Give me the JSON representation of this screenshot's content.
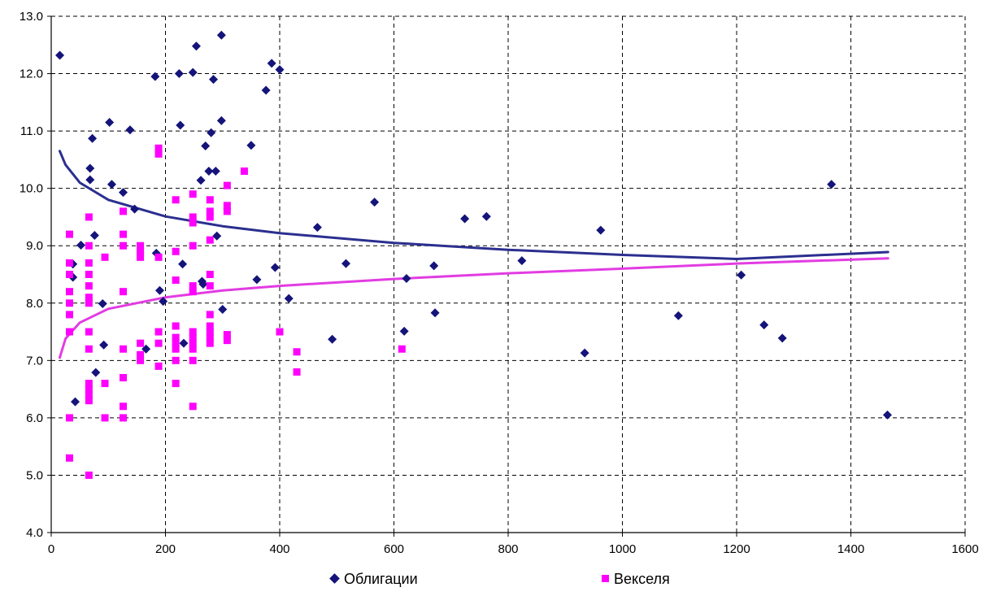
{
  "chart_data": {
    "type": "scatter",
    "title": "",
    "xlabel": "",
    "ylabel": "",
    "xlim": [
      0,
      1600
    ],
    "ylim": [
      4.0,
      13.0
    ],
    "x_ticks": [
      0,
      200,
      400,
      600,
      800,
      1000,
      1200,
      1400,
      1600
    ],
    "y_ticks": [
      "4.0",
      "5.0",
      "6.0",
      "7.0",
      "8.0",
      "9.0",
      "10.0",
      "11.0",
      "12.0",
      "13.0"
    ],
    "grid": true,
    "legend_position": "bottom",
    "series": [
      {
        "name": "Облигации",
        "marker": "diamond",
        "color": "#14147a",
        "points": [
          [
            15,
            12.32
          ],
          [
            38,
            8.68
          ],
          [
            38,
            8.45
          ],
          [
            42,
            6.28
          ],
          [
            52,
            9.01
          ],
          [
            68,
            10.35
          ],
          [
            68,
            10.15
          ],
          [
            72,
            10.87
          ],
          [
            76,
            9.18
          ],
          [
            78,
            6.79
          ],
          [
            90,
            7.99
          ],
          [
            92,
            7.27
          ],
          [
            102,
            11.15
          ],
          [
            106,
            10.07
          ],
          [
            126,
            9.93
          ],
          [
            138,
            11.02
          ],
          [
            146,
            9.64
          ],
          [
            166,
            7.2
          ],
          [
            182,
            11.95
          ],
          [
            184,
            8.87
          ],
          [
            190,
            8.22
          ],
          [
            196,
            8.03
          ],
          [
            224,
            12.0
          ],
          [
            226,
            11.1
          ],
          [
            230,
            8.68
          ],
          [
            232,
            7.3
          ],
          [
            248,
            12.02
          ],
          [
            254,
            12.48
          ],
          [
            262,
            10.14
          ],
          [
            264,
            8.38
          ],
          [
            266,
            8.33
          ],
          [
            270,
            10.74
          ],
          [
            276,
            10.3
          ],
          [
            280,
            10.97
          ],
          [
            284,
            11.9
          ],
          [
            288,
            10.3
          ],
          [
            290,
            9.17
          ],
          [
            298,
            11.18
          ],
          [
            298,
            12.67
          ],
          [
            300,
            7.89
          ],
          [
            350,
            10.75
          ],
          [
            360,
            8.41
          ],
          [
            376,
            11.71
          ],
          [
            386,
            12.18
          ],
          [
            392,
            8.62
          ],
          [
            400,
            12.07
          ],
          [
            416,
            8.08
          ],
          [
            466,
            9.32
          ],
          [
            492,
            7.37
          ],
          [
            516,
            8.69
          ],
          [
            566,
            9.76
          ],
          [
            618,
            7.51
          ],
          [
            622,
            8.43
          ],
          [
            670,
            8.65
          ],
          [
            672,
            7.83
          ],
          [
            724,
            9.47
          ],
          [
            762,
            9.51
          ],
          [
            824,
            8.74
          ],
          [
            934,
            7.13
          ],
          [
            962,
            9.27
          ],
          [
            1098,
            7.78
          ],
          [
            1208,
            8.49
          ],
          [
            1248,
            7.62
          ],
          [
            1280,
            7.39
          ],
          [
            1366,
            10.07
          ],
          [
            1464,
            6.05
          ]
        ]
      },
      {
        "name": "Векселя",
        "marker": "square",
        "color": "#ff00ff",
        "points": [
          [
            32,
            9.2
          ],
          [
            32,
            8.7
          ],
          [
            32,
            8.5
          ],
          [
            32,
            8.2
          ],
          [
            32,
            8.0
          ],
          [
            32,
            7.8
          ],
          [
            32,
            7.5
          ],
          [
            32,
            6.0
          ],
          [
            32,
            5.3
          ],
          [
            66,
            9.5
          ],
          [
            66,
            9.0
          ],
          [
            66,
            8.7
          ],
          [
            66,
            8.5
          ],
          [
            66,
            8.3
          ],
          [
            66,
            8.1
          ],
          [
            66,
            8.0
          ],
          [
            66,
            7.5
          ],
          [
            66,
            7.2
          ],
          [
            66,
            6.6
          ],
          [
            66,
            6.5
          ],
          [
            66,
            6.4
          ],
          [
            66,
            6.3
          ],
          [
            66,
            5.0
          ],
          [
            94,
            8.8
          ],
          [
            94,
            6.6
          ],
          [
            94,
            6.0
          ],
          [
            126,
            9.6
          ],
          [
            126,
            9.2
          ],
          [
            126,
            9.0
          ],
          [
            126,
            8.2
          ],
          [
            126,
            7.2
          ],
          [
            126,
            6.7
          ],
          [
            126,
            6.2
          ],
          [
            126,
            6.0
          ],
          [
            156,
            9.0
          ],
          [
            156,
            8.9
          ],
          [
            156,
            8.8
          ],
          [
            156,
            7.3
          ],
          [
            156,
            7.1
          ],
          [
            156,
            7.0
          ],
          [
            188,
            10.7
          ],
          [
            188,
            10.6
          ],
          [
            188,
            8.8
          ],
          [
            188,
            7.5
          ],
          [
            188,
            7.3
          ],
          [
            188,
            6.9
          ],
          [
            218,
            9.8
          ],
          [
            218,
            8.9
          ],
          [
            218,
            8.4
          ],
          [
            218,
            7.6
          ],
          [
            218,
            7.4
          ],
          [
            218,
            7.3
          ],
          [
            218,
            7.2
          ],
          [
            218,
            7.0
          ],
          [
            218,
            6.6
          ],
          [
            248,
            9.9
          ],
          [
            248,
            9.5
          ],
          [
            248,
            9.4
          ],
          [
            248,
            9.0
          ],
          [
            248,
            8.3
          ],
          [
            248,
            8.2
          ],
          [
            248,
            7.5
          ],
          [
            248,
            7.4
          ],
          [
            248,
            7.3
          ],
          [
            248,
            7.2
          ],
          [
            248,
            7.0
          ],
          [
            248,
            6.2
          ],
          [
            278,
            9.8
          ],
          [
            278,
            9.6
          ],
          [
            278,
            9.5
          ],
          [
            278,
            9.1
          ],
          [
            278,
            8.5
          ],
          [
            278,
            8.3
          ],
          [
            278,
            7.8
          ],
          [
            278,
            7.6
          ],
          [
            278,
            7.5
          ],
          [
            278,
            7.4
          ],
          [
            278,
            7.3
          ],
          [
            308,
            10.05
          ],
          [
            308,
            9.7
          ],
          [
            308,
            9.6
          ],
          [
            308,
            7.45
          ],
          [
            308,
            7.35
          ],
          [
            338,
            10.3
          ],
          [
            400,
            7.5
          ],
          [
            430,
            7.15
          ],
          [
            430,
            6.8
          ],
          [
            614,
            7.2
          ]
        ]
      }
    ],
    "trendlines": [
      {
        "series": "Облигации",
        "type": "logarithmic",
        "color": "#2b2f8f",
        "x_range": [
          15,
          1465
        ],
        "points": [
          [
            15,
            10.65
          ],
          [
            25,
            10.41
          ],
          [
            50,
            10.1
          ],
          [
            100,
            9.8
          ],
          [
            200,
            9.51
          ],
          [
            300,
            9.34
          ],
          [
            400,
            9.22
          ],
          [
            600,
            9.05
          ],
          [
            800,
            8.93
          ],
          [
            1000,
            8.84
          ],
          [
            1200,
            8.77
          ],
          [
            1465,
            8.89
          ]
        ]
      },
      {
        "series": "Векселя",
        "type": "logarithmic",
        "color": "#e23ce2",
        "x_range": [
          15,
          1465
        ],
        "points": [
          [
            15,
            7.05
          ],
          [
            25,
            7.38
          ],
          [
            50,
            7.66
          ],
          [
            100,
            7.9
          ],
          [
            200,
            8.1
          ],
          [
            300,
            8.22
          ],
          [
            400,
            8.3
          ],
          [
            600,
            8.42
          ],
          [
            800,
            8.52
          ],
          [
            1000,
            8.6
          ],
          [
            1200,
            8.69
          ],
          [
            1465,
            8.78
          ]
        ]
      }
    ]
  }
}
